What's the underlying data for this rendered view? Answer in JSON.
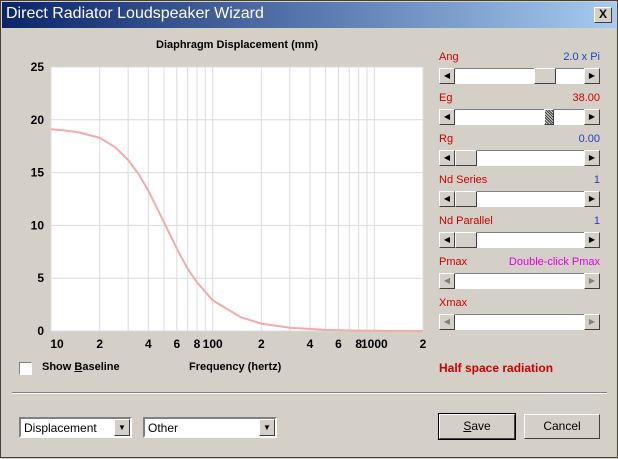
{
  "window": {
    "title": "Direct Radiator Loudspeaker Wizard",
    "close_label": "X"
  },
  "chart_data": {
    "type": "line",
    "title": "Diaphragm Displacement (mm)",
    "xlabel": "Frequency (hertz)",
    "ylabel": "",
    "xscale": "log",
    "xlim": [
      10,
      2000
    ],
    "ylim": [
      0,
      25
    ],
    "yticks": [
      "0",
      "5",
      "10",
      "15",
      "20",
      "25"
    ],
    "xticks": [
      "10",
      "2",
      "4",
      "6",
      "8",
      "100",
      "2",
      "4",
      "6",
      "8",
      "1000",
      "2"
    ],
    "grid": true,
    "line_color": "#f2aaaa",
    "series": [
      {
        "x": [
          10,
          12,
          15,
          20,
          25,
          30,
          35,
          40,
          50,
          60,
          70,
          80,
          100,
          150,
          200,
          300,
          500,
          700,
          1000,
          2000
        ],
        "values": [
          19.1,
          19.0,
          18.8,
          18.3,
          17.4,
          16.2,
          14.8,
          13.3,
          10.3,
          7.8,
          5.9,
          4.6,
          2.9,
          1.3,
          0.7,
          0.3,
          0.1,
          0.05,
          0.02,
          0.0
        ]
      }
    ]
  },
  "controls": [
    {
      "label": "Ang",
      "value": "2.0 x Pi",
      "value_color": "blue",
      "position": 0.75,
      "hatched": false,
      "disabled": false
    },
    {
      "label": "Eg",
      "value": "38.00",
      "value_color": "red",
      "position": 0.76,
      "hatched": true,
      "disabled": false
    },
    {
      "label": "Rg",
      "value": "0.00",
      "value_color": "blue",
      "position": 0.0,
      "hatched": false,
      "disabled": false
    },
    {
      "label": "Nd  Series",
      "value": "1",
      "value_color": "blue",
      "position": 0.0,
      "hatched": false,
      "disabled": false
    },
    {
      "label": "Nd  Parallel",
      "value": "1",
      "value_color": "blue",
      "position": 0.0,
      "hatched": false,
      "disabled": false
    },
    {
      "label": "Pmax",
      "value": "Double-click Pmax",
      "value_color": "magenta",
      "position": null,
      "hatched": false,
      "disabled": true
    },
    {
      "label": "Xmax",
      "value": "",
      "value_color": "blue",
      "position": null,
      "hatched": false,
      "disabled": true
    }
  ],
  "show_baseline": {
    "label_pre": "Show ",
    "label_u": "B",
    "label_post": "aseline",
    "checked": false
  },
  "status_text": "Half space radiation",
  "combo1": {
    "value": "Displacement"
  },
  "combo2": {
    "value": "Other"
  },
  "buttons": {
    "save_u": "S",
    "save_rest": "ave",
    "cancel": "Cancel"
  },
  "colors": {
    "title_gradient_start": "#0a246a",
    "title_gradient_end": "#a6caf0",
    "dialog_bg": "#d4d0c8",
    "accent_red": "#cc0000",
    "value_blue": "#2040c0"
  }
}
